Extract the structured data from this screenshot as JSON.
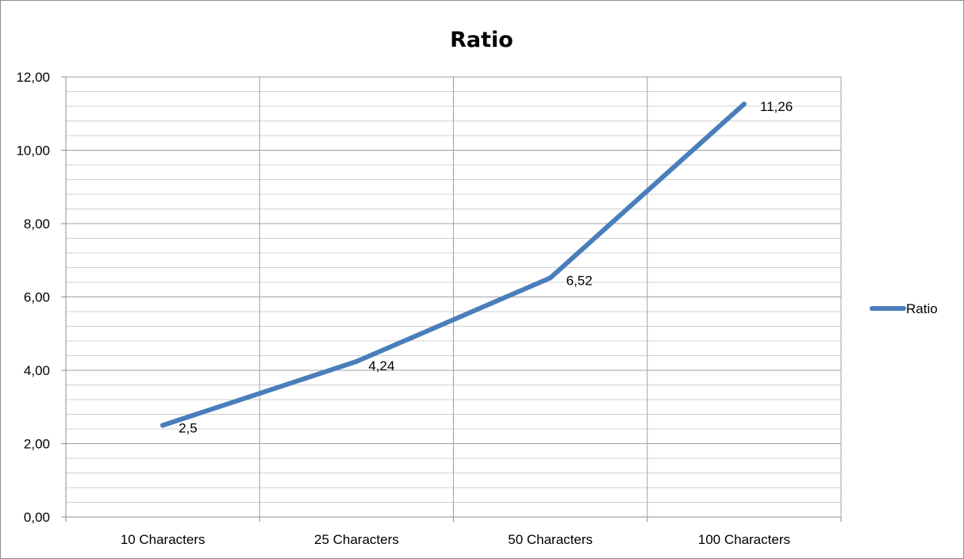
{
  "chart_data": {
    "type": "line",
    "title": "Ratio",
    "categories": [
      "10 Characters",
      "25 Characters",
      "50 Characters",
      "100 Characters"
    ],
    "series": [
      {
        "name": "Ratio",
        "values": [
          2.5,
          4.24,
          6.52,
          11.26
        ],
        "data_labels": [
          "2,5",
          "4,24",
          "6,52",
          "11,26"
        ],
        "color": "#4a7ebb"
      }
    ],
    "y_ticks": [
      "0,00",
      "2,00",
      "4,00",
      "6,00",
      "8,00",
      "10,00",
      "12,00"
    ],
    "ylim": [
      0,
      12
    ],
    "grid": true,
    "legend_position": "right"
  }
}
